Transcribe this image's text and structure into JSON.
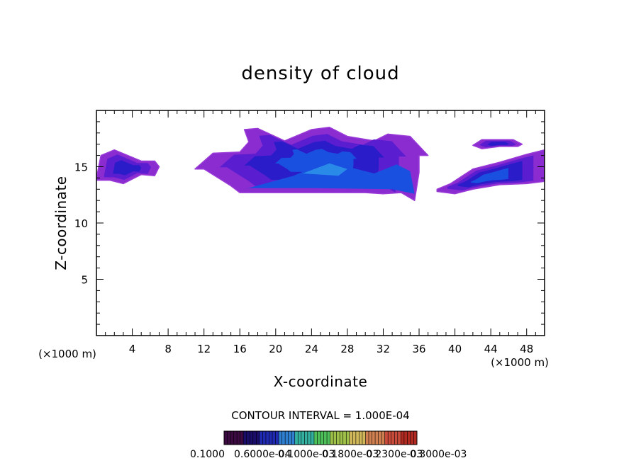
{
  "chart_data": {
    "type": "heatmap",
    "title": "density of cloud",
    "xlabel": "X-coordinate",
    "ylabel": "Z-coordinate",
    "x_unit_left": "(×1000 m)",
    "x_unit_right": "(×1000 m)",
    "xlim": [
      0,
      50
    ],
    "ylim": [
      0,
      20
    ],
    "x_ticks": [
      4,
      8,
      12,
      16,
      20,
      24,
      28,
      32,
      36,
      40,
      44,
      48
    ],
    "y_ticks": [
      5,
      10,
      15
    ],
    "contour_interval_label": "CONTOUR INTERVAL = 1.000E-04",
    "colorbar_labels": [
      "0.1000",
      "0.6000e-04",
      "0.1000e-03",
      "0.1800e-03",
      "0.2300e-03",
      "0.3000e-03"
    ],
    "colorbar_colors": [
      "#3a0a40",
      "#1a0d6a",
      "#1f2ab0",
      "#2f7fd0",
      "#34b0a0",
      "#4ec05a",
      "#9fc048",
      "#d0b85a",
      "#d08050",
      "#c84a3a",
      "#b02a22"
    ],
    "colors": {
      "outer": "#8a2ccf",
      "mid": "#5a1ed0",
      "inner": "#2a1cc8",
      "core": "#1a50e0",
      "peak": "#2a8ae8"
    },
    "regions": [
      {
        "name": "left-cloud",
        "x": [
          0,
          0.5,
          2,
          3.5,
          5,
          6.5,
          7,
          6.5,
          5,
          3,
          1.5,
          0
        ],
        "z": [
          14,
          16,
          16.5,
          16,
          15.5,
          15.5,
          15,
          14.2,
          14.3,
          13.5,
          13.8,
          13.8
        ],
        "level": 6e-05
      },
      {
        "name": "central-cloud",
        "x": [
          11,
          13,
          16,
          17,
          16.5,
          18,
          21,
          24,
          26,
          28,
          31,
          32.5,
          35,
          37,
          36,
          36,
          35.5,
          34,
          32,
          30,
          26,
          20,
          16,
          15,
          12
        ],
        "z": [
          14.8,
          16.2,
          16.3,
          17.2,
          18.3,
          18.4,
          17.3,
          18.3,
          18.5,
          17.7,
          17.3,
          17.9,
          17.7,
          16,
          16,
          14.5,
          12,
          12.7,
          12.6,
          12.7,
          12.7,
          12.7,
          12.7,
          13.3,
          14.8
        ],
        "level": 0.0001
      },
      {
        "name": "upper-right-cloud",
        "x": [
          42,
          43,
          45,
          46.5,
          47.5,
          47,
          45,
          43
        ],
        "z": [
          16.9,
          17.4,
          17.4,
          17.4,
          17.0,
          16.8,
          16.8,
          16.6
        ],
        "level": 6e-05
      },
      {
        "name": "right-cloud",
        "x": [
          38,
          39.5,
          42,
          45,
          48,
          50,
          50,
          48,
          45,
          42,
          40,
          38
        ],
        "z": [
          13.0,
          13.5,
          14.8,
          15.4,
          16.1,
          16.5,
          13.7,
          13.5,
          13.4,
          13.0,
          12.6,
          12.8
        ],
        "level": 0.0001
      }
    ]
  }
}
